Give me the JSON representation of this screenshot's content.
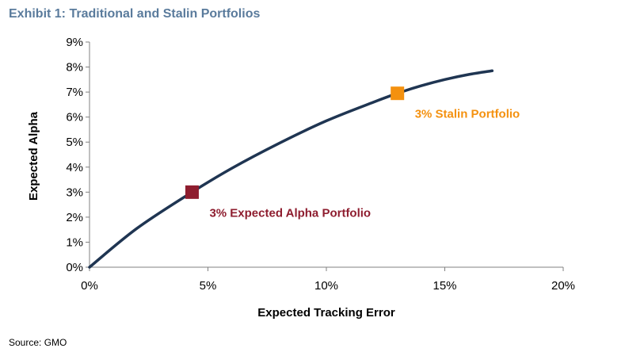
{
  "header": {
    "title": "Exhibit 1: Traditional and Stalin Portfolios"
  },
  "footer": {
    "source": "Source: GMO"
  },
  "chart_data": {
    "type": "line",
    "title": "Exhibit 1: Traditional and Stalin Portfolios",
    "xlabel": "Expected Tracking Error",
    "ylabel": "Expected Alpha",
    "xlim": [
      0,
      20
    ],
    "ylim": [
      0,
      9
    ],
    "x_ticks": [
      "0%",
      "5%",
      "10%",
      "15%",
      "20%"
    ],
    "y_ticks": [
      "0%",
      "1%",
      "2%",
      "3%",
      "4%",
      "5%",
      "6%",
      "7%",
      "8%",
      "9%"
    ],
    "grid": false,
    "legend": "none",
    "series": [
      {
        "color": "#1f3552",
        "x": [
          0,
          2,
          4.33,
          6,
          8,
          10,
          12,
          13,
          14,
          15,
          16,
          17
        ],
        "y": [
          0,
          1.55,
          3.0,
          3.95,
          4.95,
          5.85,
          6.6,
          6.95,
          7.25,
          7.5,
          7.7,
          7.85
        ]
      }
    ],
    "markers": [
      {
        "x": 4.33,
        "y": 3.0,
        "color": "#8e1d2f",
        "label": "3% Expected Alpha Portfolio"
      },
      {
        "x": 13.0,
        "y": 6.95,
        "color": "#f4910f",
        "label": "3% Stalin Portfolio"
      }
    ],
    "colors": {
      "axis": "#808080",
      "text": "#000000"
    }
  }
}
